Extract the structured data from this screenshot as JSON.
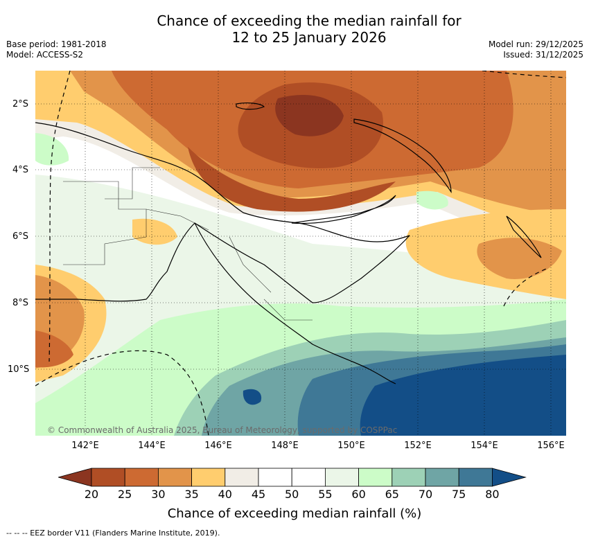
{
  "title_line1": "Chance of exceeding the median rainfall for",
  "title_line2": "12 to 25 January 2026",
  "meta_left": {
    "base_period": "Base period: 1981-2018",
    "model": "Model: ACCESS-S2"
  },
  "meta_right": {
    "model_run": "Model run: 29/12/2025",
    "issued": "Issued: 31/12/2025"
  },
  "lat_labels": [
    "2°S",
    "4°S",
    "6°S",
    "8°S",
    "10°S"
  ],
  "lon_labels": [
    "142°E",
    "144°E",
    "146°E",
    "148°E",
    "150°E",
    "152°E",
    "154°E",
    "156°E"
  ],
  "colorbar": {
    "ticks": [
      "20",
      "25",
      "30",
      "35",
      "40",
      "45",
      "50",
      "55",
      "60",
      "65",
      "70",
      "75",
      "80"
    ],
    "colors": [
      "#8b3520",
      "#b04e25",
      "#cd6a32",
      "#e2944a",
      "#ffcd6e",
      "#f1ede6",
      "#ffffff",
      "#ffffff",
      "#ebf6e8",
      "#ccfcc8",
      "#9dd1b6",
      "#6fa5a5",
      "#3f7896",
      "#134e87"
    ],
    "label": "Chance of exceeding median rainfall (%)"
  },
  "copyright": "© Commonwealth of Australia 2025, Bureau of Meteorology, supported by COSPPac",
  "eez_legend": "-- -- -- EEZ border V11 (Flanders Marine Institute, 2019)."
}
